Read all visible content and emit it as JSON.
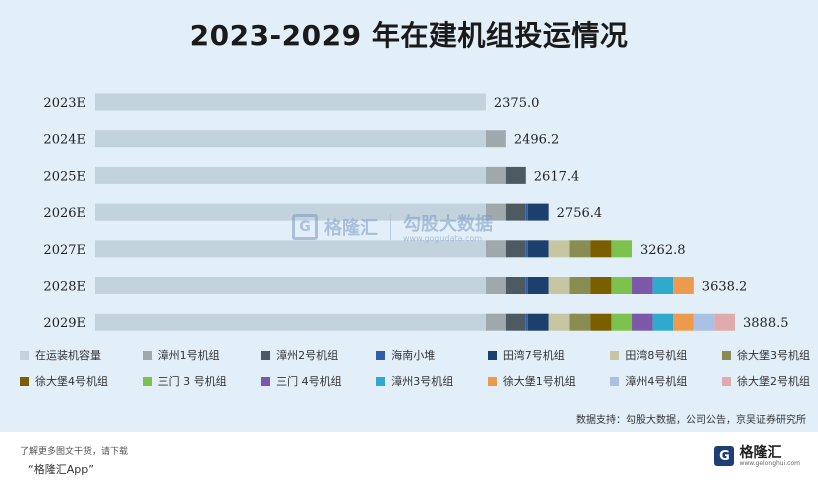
{
  "chart_data": {
    "type": "bar",
    "orientation": "horizontal",
    "stacked": true,
    "title": "2023-2029 年在建机组投运情况",
    "categories": [
      "2023E",
      "2024E",
      "2025E",
      "2026E",
      "2027E",
      "2028E",
      "2029E"
    ],
    "totals": [
      "2375.0",
      "2496.2",
      "2617.4",
      "2756.4",
      "3262.8",
      "3638.2",
      "3888.5"
    ],
    "series": [
      {
        "name": "在运装机容量",
        "color": "#c3d3de",
        "values": [
          2375.0,
          2375.0,
          2375.0,
          2375.0,
          2375.0,
          2375.0,
          2375.0
        ]
      },
      {
        "name": "漳州1号机组",
        "color": "#9fa8ad",
        "values": [
          0,
          121.2,
          121.2,
          121.2,
          121.2,
          121.2,
          121.2
        ]
      },
      {
        "name": "漳州2号机组",
        "color": "#4e5a62",
        "values": [
          0,
          0,
          121.2,
          121.2,
          121.2,
          121.2,
          121.2
        ]
      },
      {
        "name": "海南小堆",
        "color": "#2f5fa8",
        "values": [
          0,
          0,
          0,
          12.5,
          12.5,
          12.5,
          12.5
        ]
      },
      {
        "name": "田湾7号机组",
        "color": "#1d3f6e",
        "values": [
          0,
          0,
          0,
          126.5,
          126.5,
          126.5,
          126.5
        ]
      },
      {
        "name": "田湾8号机组",
        "color": "#c6c7a2",
        "values": [
          0,
          0,
          0,
          0,
          126.5,
          126.5,
          126.5
        ]
      },
      {
        "name": "徐大堡3号机组",
        "color": "#8a8d52",
        "values": [
          0,
          0,
          0,
          0,
          127.4,
          127.4,
          127.4
        ]
      },
      {
        "name": "徐大堡4号机组",
        "color": "#7a5f00",
        "values": [
          0,
          0,
          0,
          0,
          127.4,
          127.4,
          127.4
        ]
      },
      {
        "name": "三门 3 号机组",
        "color": "#7dc24e",
        "values": [
          0,
          0,
          0,
          0,
          125.1,
          125.1,
          125.1
        ]
      },
      {
        "name": "三门 4号机组",
        "color": "#7e58a8",
        "values": [
          0,
          0,
          0,
          0,
          0,
          125.1,
          125.1
        ]
      },
      {
        "name": "漳州3号机组",
        "color": "#30a9cf",
        "values": [
          0,
          0,
          0,
          0,
          0,
          125.1,
          125.1
        ]
      },
      {
        "name": "徐大堡1号机组",
        "color": "#ee9a4d",
        "values": [
          0,
          0,
          0,
          0,
          0,
          125.2,
          125.2
        ]
      },
      {
        "name": "漳州4号机组",
        "color": "#a9c1e4",
        "values": [
          0,
          0,
          0,
          0,
          0,
          0,
          125.1
        ]
      },
      {
        "name": "徐大堡2号机组",
        "color": "#e0aaad",
        "values": [
          0,
          0,
          0,
          0,
          0,
          0,
          125.2
        ]
      }
    ],
    "xlim": [
      0,
      3888.5
    ],
    "legend_position": "bottom",
    "grid": false
  },
  "source": "数据支持：勾股大数据，公司公告，京吴证券研究所",
  "watermark": {
    "brand": "格隆汇",
    "partner": "勾股大数据",
    "partner_sub": "www.gogudata.com"
  },
  "footer": {
    "note": "了解更多图文干货，请下载",
    "app": "“格隆汇App”",
    "logo_text": "格隆汇",
    "logo_sub": "www.gelonghui.com",
    "logo_letter": "G"
  }
}
